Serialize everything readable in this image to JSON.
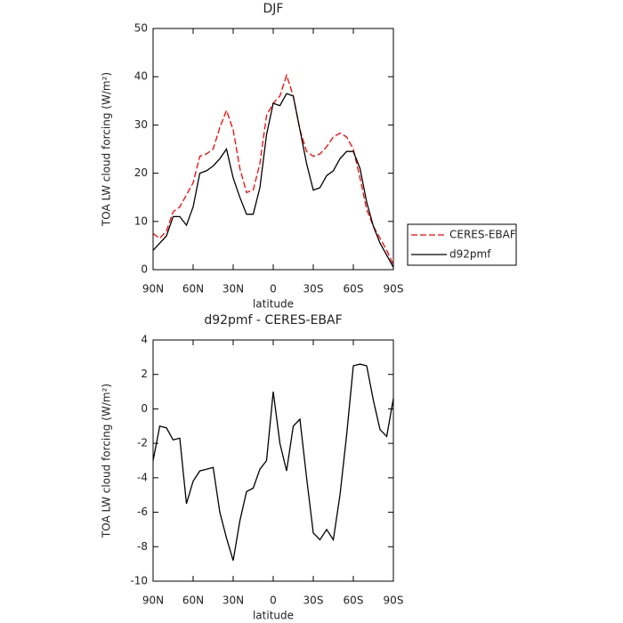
{
  "chart_data": [
    {
      "type": "line",
      "title": "DJF",
      "xlabel": "latitude",
      "ylabel": "TOA LW cloud forcing (W/m²)",
      "x": [
        90,
        85,
        80,
        75,
        70,
        65,
        60,
        55,
        50,
        45,
        40,
        35,
        30,
        25,
        20,
        15,
        10,
        5,
        0,
        -5,
        -10,
        -15,
        -20,
        -25,
        -30,
        -35,
        -40,
        -45,
        -50,
        -55,
        -60,
        -65,
        -70,
        -75,
        -80,
        -85,
        -90
      ],
      "series": [
        {
          "name": "CERES-EBAF",
          "color": "#ff0000",
          "dashed": true,
          "values": [
            7.5,
            6.5,
            8,
            12,
            13,
            15.5,
            18,
            23.5,
            24,
            25,
            29.5,
            33,
            29,
            21,
            16,
            16.5,
            22,
            32,
            34.5,
            36,
            40.3,
            36,
            29,
            24.5,
            23.5,
            24,
            25.5,
            27.5,
            28.3,
            27.5,
            25,
            19,
            12.5,
            9,
            6.5,
            4,
            1
          ]
        },
        {
          "name": "d92pmf",
          "color": "#000000",
          "dashed": false,
          "values": [
            4,
            5.5,
            7,
            11,
            11,
            9.2,
            13,
            20,
            20.5,
            21.5,
            23,
            25,
            19,
            15,
            11.5,
            11.5,
            17,
            28,
            34.5,
            34,
            36.5,
            36,
            29,
            22,
            16.5,
            17,
            19.5,
            20.5,
            23,
            24.5,
            24.5,
            21,
            14,
            9,
            5.5,
            3,
            0.5
          ]
        }
      ],
      "xlim": [
        90,
        -90
      ],
      "xticks": [
        {
          "value": 90,
          "label": "90N"
        },
        {
          "value": 60,
          "label": "60N"
        },
        {
          "value": 30,
          "label": "30N"
        },
        0,
        {
          "value": -30,
          "label": "30S"
        },
        {
          "value": -60,
          "label": "60S"
        },
        {
          "value": -90,
          "label": "90S"
        }
      ],
      "ylim": [
        0,
        50
      ],
      "yticks": [
        0,
        10,
        20,
        30,
        40,
        50
      ],
      "legend": "right"
    },
    {
      "type": "line",
      "title": "d92pmf - CERES-EBAF",
      "xlabel": "latitude",
      "ylabel": "TOA LW cloud forcing (W/m²)",
      "x": [
        90,
        85,
        80,
        75,
        70,
        65,
        60,
        55,
        50,
        45,
        40,
        35,
        30,
        25,
        20,
        15,
        10,
        5,
        0,
        -5,
        -10,
        -15,
        -20,
        -25,
        -30,
        -35,
        -40,
        -45,
        -50,
        -55,
        -60,
        -65,
        -70,
        -75,
        -80,
        -85,
        -90
      ],
      "series": [
        {
          "color": "#000000",
          "dashed": false,
          "values": [
            -3,
            -1,
            -1.1,
            -1.8,
            -1.7,
            -5.5,
            -4.2,
            -3.6,
            -3.5,
            -3.4,
            -6,
            -7.5,
            -8.8,
            -6.5,
            -4.8,
            -4.6,
            -3.5,
            -3,
            1,
            -2,
            -3.6,
            -1,
            -0.6,
            -4,
            -7.2,
            -7.6,
            -7,
            -7.6,
            -5,
            -1.5,
            2.5,
            2.6,
            2.5,
            0.5,
            -1.2,
            -1.6,
            0.6
          ]
        }
      ],
      "xlim": [
        90,
        -90
      ],
      "xticks": [
        {
          "value": 90,
          "label": "90N"
        },
        {
          "value": 60,
          "label": "60N"
        },
        {
          "value": 30,
          "label": "30N"
        },
        0,
        {
          "value": -30,
          "label": "30S"
        },
        {
          "value": -60,
          "label": "60S"
        },
        {
          "value": -90,
          "label": "90S"
        }
      ],
      "ylim": [
        -10,
        4
      ],
      "yticks": [
        -10,
        -8,
        -6,
        -4,
        -2,
        0,
        2,
        4
      ]
    }
  ]
}
